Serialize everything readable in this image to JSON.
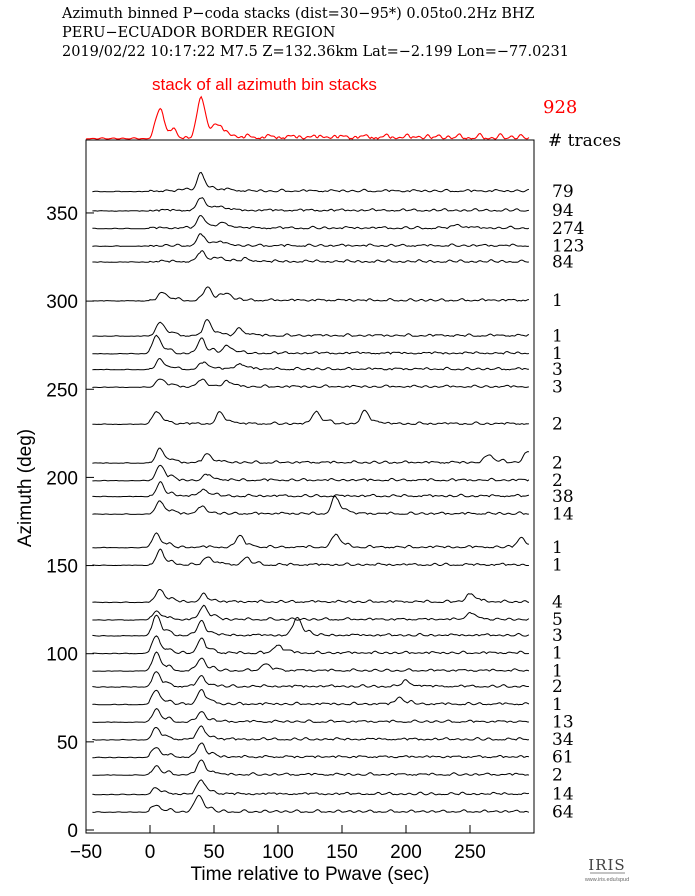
{
  "header": {
    "line1": "Azimuth binned P−coda stacks (dist=30−95*)  0.05to0.2Hz  BHZ",
    "line2": "PERU−ECUADOR BORDER REGION",
    "line3": "2019/02/22  10:17:22  M7.5  Z=132.36km Lat=−2.199 Lon=−77.0231"
  },
  "logo": {
    "text": "IRIS",
    "url": "www.iris.edu/spud"
  },
  "colors": {
    "stack": "#ff0000",
    "traces": "#000000",
    "axes": "#000000"
  },
  "chart_data": {
    "type": "line",
    "xlabel": "Time relative to Pwave (sec)",
    "ylabel": "Azimuth (deg)",
    "xlim": [
      -50,
      300
    ],
    "ylim": [
      0,
      380
    ],
    "xticks": [
      -50,
      0,
      50,
      100,
      150,
      200,
      250
    ],
    "yticks": [
      0,
      50,
      100,
      150,
      200,
      250,
      300,
      350
    ],
    "grid": false,
    "stack": {
      "name": "stack of all azimuth bin stacks",
      "trace_count": "928",
      "peaks": [
        [
          8,
          1.0
        ],
        [
          40,
          1.35
        ],
        [
          55,
          0.35
        ]
      ]
    },
    "count_header": "# traces",
    "series": [
      {
        "azimuth": 362,
        "traces": "79",
        "peaks": [
          [
            40,
            1.2
          ],
          [
            28,
            0.2
          ],
          [
            60,
            0.15
          ]
        ]
      },
      {
        "azimuth": 351,
        "traces": "94",
        "peaks": [
          [
            40,
            0.9
          ],
          [
            55,
            0.3
          ]
        ]
      },
      {
        "azimuth": 341,
        "traces": "274",
        "peaks": [
          [
            40,
            0.9
          ],
          [
            58,
            0.4
          ],
          [
            240,
            0.25
          ]
        ]
      },
      {
        "azimuth": 331,
        "traces": "123",
        "peaks": [
          [
            40,
            0.8
          ],
          [
            55,
            0.3
          ]
        ]
      },
      {
        "azimuth": 322,
        "traces": "84",
        "peaks": [
          [
            40,
            0.7
          ],
          [
            55,
            0.3
          ],
          [
            75,
            0.2
          ]
        ]
      },
      {
        "azimuth": 300,
        "traces": "1",
        "peaks": [
          [
            10,
            0.6
          ],
          [
            45,
            1.0
          ],
          [
            60,
            0.5
          ]
        ]
      },
      {
        "azimuth": 280,
        "traces": "1",
        "peaks": [
          [
            8,
            1.0
          ],
          [
            45,
            1.1
          ],
          [
            70,
            0.5
          ]
        ]
      },
      {
        "azimuth": 270,
        "traces": "1",
        "peaks": [
          [
            5,
            1.3
          ],
          [
            40,
            1.0
          ],
          [
            60,
            0.6
          ]
        ]
      },
      {
        "azimuth": 261,
        "traces": "3",
        "peaks": [
          [
            8,
            0.7
          ],
          [
            42,
            0.5
          ],
          [
            70,
            0.4
          ]
        ]
      },
      {
        "azimuth": 251,
        "traces": "3",
        "peaks": [
          [
            8,
            0.6
          ],
          [
            40,
            0.5
          ],
          [
            60,
            0.4
          ]
        ]
      },
      {
        "azimuth": 230,
        "traces": "2",
        "peaks": [
          [
            5,
            0.9
          ],
          [
            55,
            0.8
          ],
          [
            130,
            0.9
          ],
          [
            168,
            0.9
          ]
        ]
      },
      {
        "azimuth": 208,
        "traces": "2",
        "peaks": [
          [
            8,
            1.0
          ],
          [
            45,
            0.6
          ],
          [
            265,
            0.6
          ],
          [
            295,
            0.8
          ]
        ]
      },
      {
        "azimuth": 198,
        "traces": "2",
        "peaks": [
          [
            8,
            1.1
          ],
          [
            45,
            0.4
          ]
        ]
      },
      {
        "azimuth": 189,
        "traces": "38",
        "peaks": [
          [
            8,
            0.9
          ],
          [
            42,
            0.5
          ]
        ]
      },
      {
        "azimuth": 179,
        "traces": "14",
        "peaks": [
          [
            8,
            0.9
          ],
          [
            40,
            0.5
          ],
          [
            145,
            1.2
          ]
        ]
      },
      {
        "azimuth": 160,
        "traces": "1",
        "peaks": [
          [
            5,
            1.0
          ],
          [
            70,
            0.8
          ],
          [
            145,
            0.9
          ],
          [
            290,
            0.7
          ]
        ]
      },
      {
        "azimuth": 150,
        "traces": "1",
        "peaks": [
          [
            8,
            1.0
          ],
          [
            45,
            0.6
          ],
          [
            75,
            0.5
          ]
        ]
      },
      {
        "azimuth": 129,
        "traces": "4",
        "peaks": [
          [
            8,
            0.9
          ],
          [
            42,
            0.5
          ],
          [
            250,
            0.6
          ]
        ]
      },
      {
        "azimuth": 119,
        "traces": "5",
        "peaks": [
          [
            5,
            0.6
          ],
          [
            42,
            1.0
          ],
          [
            250,
            0.5
          ]
        ]
      },
      {
        "azimuth": 110,
        "traces": "3",
        "peaks": [
          [
            5,
            1.4
          ],
          [
            40,
            1.0
          ],
          [
            115,
            1.3
          ]
        ]
      },
      {
        "azimuth": 100,
        "traces": "1",
        "peaks": [
          [
            5,
            1.2
          ],
          [
            40,
            1.0
          ],
          [
            100,
            0.6
          ]
        ]
      },
      {
        "azimuth": 90,
        "traces": "1",
        "peaks": [
          [
            5,
            1.3
          ],
          [
            40,
            0.9
          ],
          [
            90,
            0.5
          ]
        ]
      },
      {
        "azimuth": 81,
        "traces": "2",
        "peaks": [
          [
            5,
            1.0
          ],
          [
            40,
            0.7
          ],
          [
            200,
            0.4
          ]
        ]
      },
      {
        "azimuth": 71,
        "traces": "1",
        "peaks": [
          [
            5,
            1.0
          ],
          [
            40,
            1.0
          ],
          [
            195,
            0.5
          ]
        ]
      },
      {
        "azimuth": 61,
        "traces": "13",
        "peaks": [
          [
            5,
            0.9
          ],
          [
            40,
            0.7
          ]
        ]
      },
      {
        "azimuth": 51,
        "traces": "34",
        "peaks": [
          [
            5,
            0.8
          ],
          [
            40,
            0.9
          ]
        ]
      },
      {
        "azimuth": 41,
        "traces": "61",
        "peaks": [
          [
            5,
            0.7
          ],
          [
            40,
            1.0
          ]
        ]
      },
      {
        "azimuth": 31,
        "traces": "2",
        "peaks": [
          [
            5,
            0.6
          ],
          [
            40,
            1.0
          ]
        ]
      },
      {
        "azimuth": 20,
        "traces": "14",
        "peaks": [
          [
            5,
            0.4
          ],
          [
            40,
            1.0
          ]
        ]
      },
      {
        "azimuth": 10,
        "traces": "64",
        "peaks": [
          [
            5,
            0.5
          ],
          [
            38,
            1.2
          ]
        ]
      }
    ]
  }
}
